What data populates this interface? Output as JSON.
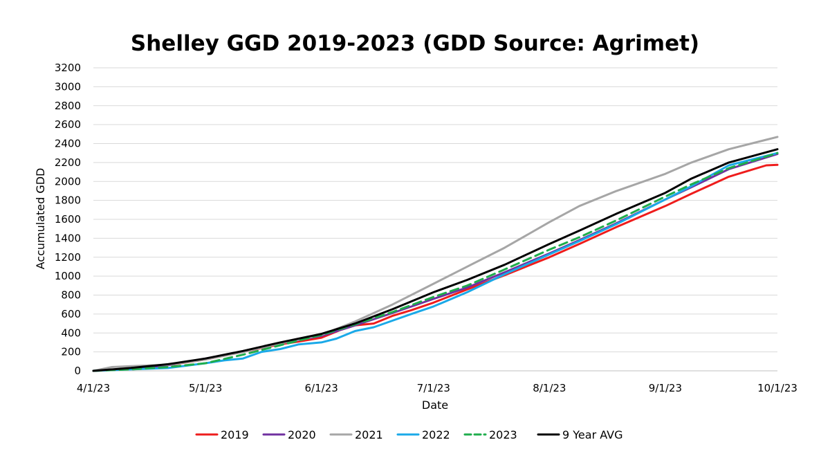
{
  "chart_data": {
    "type": "line",
    "title": "Shelley GGD 2019-2023 (GDD Source: Agrimet)",
    "xlabel": "Date",
    "ylabel": "Accumulated GDD",
    "ylim": [
      0,
      3200
    ],
    "yticks": [
      0,
      200,
      400,
      600,
      800,
      1000,
      1200,
      1400,
      1600,
      1800,
      2000,
      2200,
      2400,
      2600,
      2800,
      3000,
      3200
    ],
    "xlim": [
      0,
      183
    ],
    "x_ticks": [
      {
        "day": 0,
        "label": "4/1/23"
      },
      {
        "day": 30,
        "label": "5/1/23"
      },
      {
        "day": 61,
        "label": "6/1/23"
      },
      {
        "day": 91,
        "label": "7/1/23"
      },
      {
        "day": 122,
        "label": "8/1/23"
      },
      {
        "day": 153,
        "label": "9/1/23"
      },
      {
        "day": 183,
        "label": "10/1/23"
      }
    ],
    "grid": true,
    "legend_position": "bottom",
    "series": [
      {
        "name": "2019",
        "color": "#ee1c1c",
        "dash": false,
        "x": [
          0,
          10,
          20,
          30,
          40,
          50,
          55,
          61,
          66,
          70,
          75,
          80,
          85,
          91,
          100,
          110,
          122,
          130,
          140,
          153,
          160,
          165,
          170,
          175,
          180,
          183
        ],
        "y": [
          0,
          20,
          60,
          120,
          200,
          280,
          310,
          350,
          430,
          480,
          500,
          580,
          640,
          720,
          860,
          1010,
          1200,
          1340,
          1520,
          1740,
          1870,
          1960,
          2050,
          2110,
          2170,
          2175
        ]
      },
      {
        "name": "2020",
        "color": "#7030a0",
        "dash": false,
        "x": [
          0,
          10,
          20,
          30,
          40,
          50,
          61,
          70,
          80,
          91,
          100,
          110,
          122,
          130,
          140,
          153,
          160,
          170,
          183
        ],
        "y": [
          0,
          20,
          60,
          130,
          200,
          290,
          370,
          480,
          610,
          760,
          880,
          1040,
          1240,
          1380,
          1560,
          1810,
          1940,
          2130,
          2290
        ]
      },
      {
        "name": "2021",
        "color": "#a6a6a6",
        "dash": false,
        "x": [
          0,
          5,
          10,
          20,
          30,
          40,
          50,
          61,
          70,
          80,
          91,
          100,
          110,
          122,
          130,
          140,
          153,
          160,
          170,
          180,
          183
        ],
        "y": [
          0,
          40,
          50,
          65,
          120,
          200,
          290,
          380,
          520,
          700,
          920,
          1100,
          1300,
          1570,
          1740,
          1900,
          2080,
          2200,
          2340,
          2440,
          2470
        ]
      },
      {
        "name": "2022",
        "color": "#1aa9e8",
        "dash": false,
        "x": [
          0,
          10,
          20,
          30,
          35,
          40,
          45,
          50,
          55,
          61,
          65,
          70,
          75,
          80,
          85,
          91,
          100,
          110,
          122,
          130,
          140,
          153,
          160,
          170,
          183
        ],
        "y": [
          0,
          15,
          30,
          80,
          110,
          130,
          200,
          230,
          280,
          300,
          340,
          420,
          460,
          530,
          600,
          680,
          830,
          1020,
          1230,
          1370,
          1550,
          1810,
          1950,
          2170,
          2300
        ]
      },
      {
        "name": "2023",
        "color": "#1fad4c",
        "dash": true,
        "x": [
          0,
          10,
          20,
          30,
          40,
          50,
          61,
          70,
          80,
          91,
          100,
          110,
          122,
          130,
          140,
          153,
          160,
          170,
          183
        ],
        "y": [
          0,
          15,
          40,
          80,
          170,
          270,
          380,
          490,
          620,
          780,
          900,
          1070,
          1280,
          1410,
          1590,
          1840,
          1970,
          2140,
          2300
        ]
      },
      {
        "name": "9 Year AVG",
        "color": "#000000",
        "dash": false,
        "x": [
          0,
          10,
          20,
          30,
          40,
          50,
          61,
          70,
          80,
          91,
          100,
          110,
          122,
          130,
          140,
          153,
          160,
          170,
          183
        ],
        "y": [
          0,
          30,
          70,
          130,
          210,
          300,
          390,
          500,
          650,
          830,
          960,
          1120,
          1340,
          1480,
          1660,
          1880,
          2030,
          2200,
          2340
        ]
      }
    ]
  }
}
